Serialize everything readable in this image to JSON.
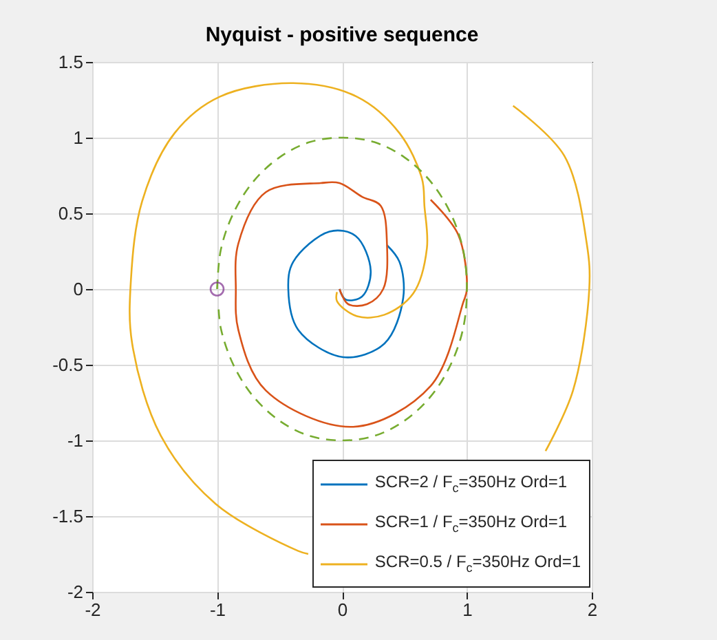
{
  "chart_data": {
    "type": "line",
    "title": "Nyquist - positive sequence",
    "xlim": [
      -2,
      2
    ],
    "xticks": [
      -2,
      -1,
      0,
      1,
      2
    ],
    "ylim": [
      -2,
      1.5
    ],
    "yticks": [
      -2,
      -1.5,
      -1,
      -0.5,
      0,
      0.5,
      1,
      1.5
    ],
    "grid": true,
    "legend": "bottom right",
    "series": [
      {
        "name": "SCR=2 / F$_{c}$=350Hz Ord=1",
        "color": "#0072bd",
        "x": [
          -0.02,
          0.03,
          0.16,
          0.23,
          0.11,
          -0.1,
          -0.39,
          -0.43,
          -0.35,
          0.01,
          0.34,
          0.49,
          0.46,
          0.36
        ],
        "values": [
          0,
          -0.07,
          -0.05,
          0.12,
          0.35,
          0.38,
          0.18,
          0,
          -0.27,
          -0.45,
          -0.36,
          -0.06,
          0.18,
          0.29
        ]
      },
      {
        "name": "SCR=1 / F$_{c}$=350Hz Ord=1",
        "color": "#d95319",
        "x": [
          -0.02,
          0.05,
          0.2,
          0.33,
          0.36,
          0.31,
          0.16,
          -0.02,
          -0.17,
          -0.61,
          -0.83,
          -0.85,
          -0.83,
          -0.61,
          0.09,
          0.71,
          0.97,
          1.0,
          0.93,
          0.71
        ],
        "values": [
          0,
          -0.1,
          -0.1,
          0,
          0.3,
          0.55,
          0.61,
          0.7,
          0.7,
          0.64,
          0.3,
          0,
          -0.27,
          -0.67,
          -0.91,
          -0.64,
          -0.09,
          0,
          0.36,
          0.59
        ]
      },
      {
        "name": "SCR=0.5 / F$_{c}$=350Hz Ord=1",
        "color": "#edb120",
        "x": [
          -0.04,
          -0.04,
          0.12,
          0.34,
          0.57,
          0.68,
          0.66,
          0.64,
          0.46,
          0.12,
          -0.39,
          -0.98,
          -1.34,
          -1.6,
          -1.69,
          -1.68,
          -1.45,
          -1.01,
          -0.35,
          -0.27,
          0.7,
          1.63,
          1.85,
          1.98,
          1.96,
          1.78,
          1.37
        ],
        "values": [
          -0.02,
          -0.08,
          -0.18,
          -0.17,
          -0.03,
          0.27,
          0.55,
          0.73,
          1.03,
          1.27,
          1.36,
          1.27,
          1.03,
          0.58,
          0.06,
          -0.36,
          -0.97,
          -1.42,
          -1.73,
          -1.75,
          null,
          -1.07,
          -0.67,
          0,
          0.3,
          0.88,
          1.21
        ]
      },
      {
        "color": "#77ac30",
        "line_style": "dashed",
        "x": [
          -1,
          -0.97,
          -0.87,
          -0.71,
          -0.5,
          -0.26,
          0,
          0.26,
          0.5,
          0.71,
          0.87,
          0.97,
          1,
          0.97,
          0.87,
          0.71,
          0.5,
          0.26,
          0,
          -0.26,
          -0.5,
          -0.71,
          -0.87,
          -0.97,
          -0.99
        ],
        "values": [
          0,
          0.26,
          0.5,
          0.71,
          0.87,
          0.97,
          1,
          0.97,
          0.87,
          0.71,
          0.5,
          0.26,
          0,
          -0.26,
          -0.5,
          -0.71,
          -0.87,
          -0.97,
          -1,
          -0.97,
          -0.87,
          -0.71,
          -0.5,
          -0.26,
          -0.1
        ]
      },
      {
        "type": "scatter",
        "marker": "circle",
        "color": "#7e2f8e",
        "x": [
          -1
        ],
        "values": [
          0
        ]
      }
    ]
  }
}
